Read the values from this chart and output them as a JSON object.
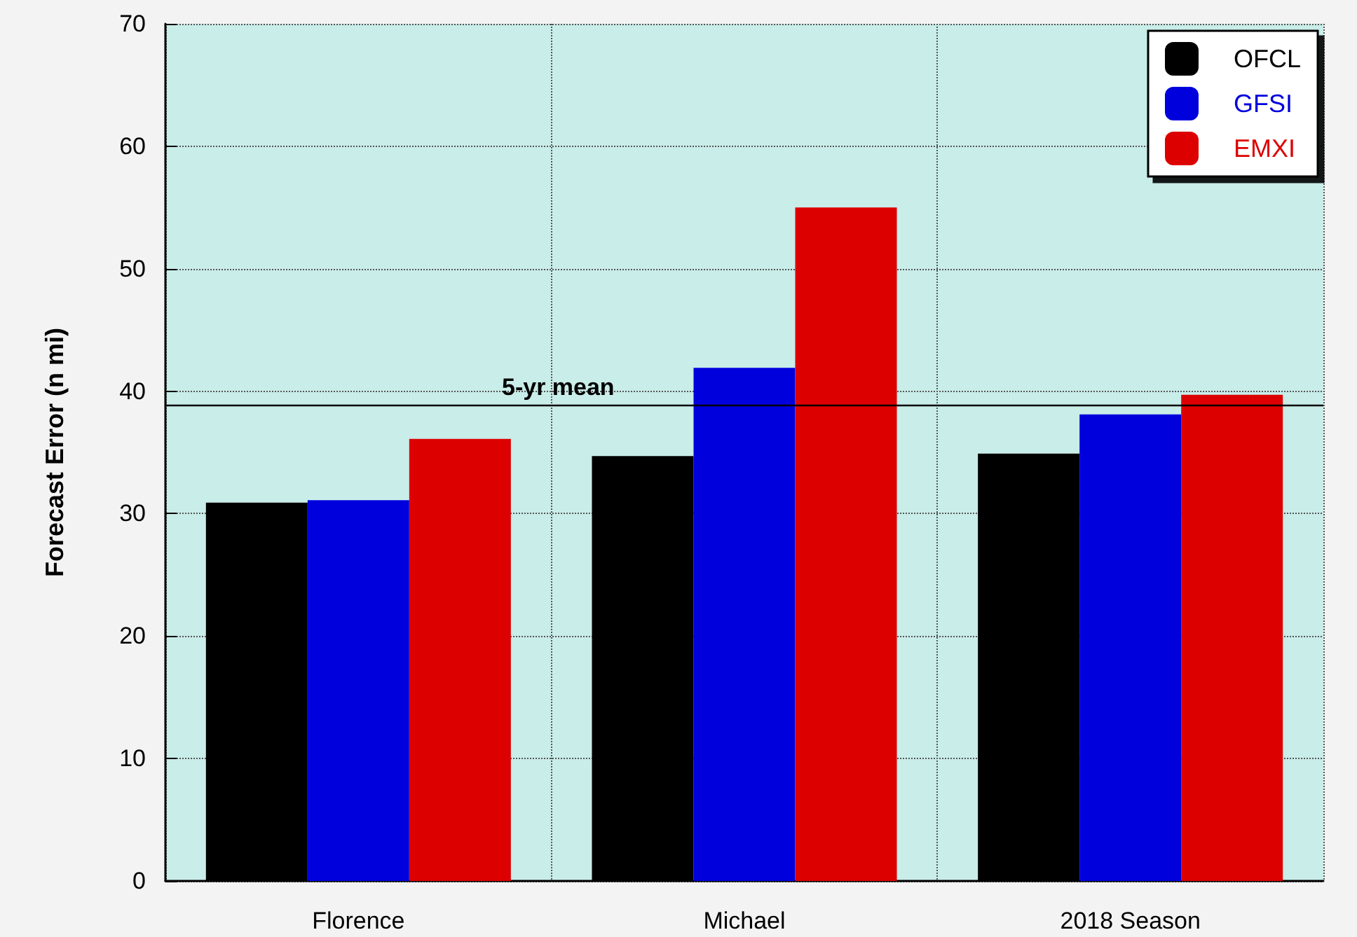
{
  "chart_data": {
    "type": "bar",
    "ylabel": "Forecast Error (n mi)",
    "categories": [
      "Florence",
      "Michael",
      "2018 Season"
    ],
    "series": [
      {
        "name": "OFCL",
        "color": "#000000",
        "values": [
          30.9,
          34.7,
          34.9
        ]
      },
      {
        "name": "GFSI",
        "color": "#0000dd",
        "values": [
          31.1,
          41.9,
          38.1
        ]
      },
      {
        "name": "EMXI",
        "color": "#dd0000",
        "values": [
          36.1,
          55.0,
          39.7
        ]
      }
    ],
    "ylim": [
      0,
      70
    ],
    "yticks": [
      0,
      10,
      20,
      30,
      40,
      50,
      60,
      70
    ],
    "grid": true,
    "legend": "top right",
    "ref_lines": [
      {
        "axis": "y",
        "value": 38.9,
        "label": "5-yr mean",
        "color": "#000000",
        "line_style": "solid"
      }
    ]
  }
}
